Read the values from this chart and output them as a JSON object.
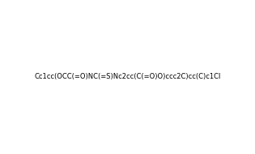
{
  "smiles": "Cc1cc(OCC(=O)NC(=S)Nc2cc(C(=O)O)ccc2C)cc(C)c1Cl",
  "title": "",
  "background_color": "#ffffff",
  "figsize": [
    3.15,
    1.9
  ],
  "dpi": 100
}
